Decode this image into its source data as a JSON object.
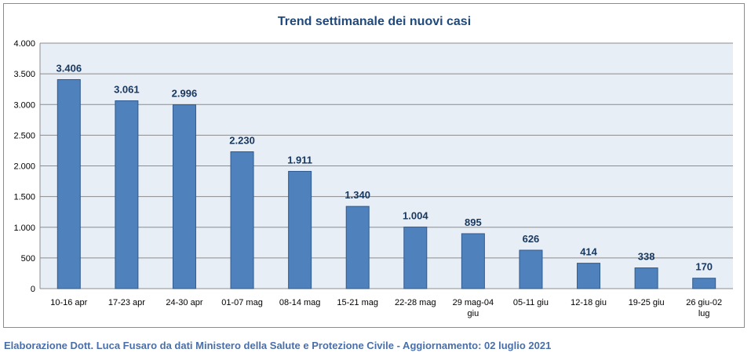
{
  "chart_data": {
    "type": "bar",
    "title": "Trend settimanale dei nuovi casi",
    "xlabel": "",
    "ylabel": "",
    "categories": [
      "10-16 apr",
      "17-23 apr",
      "24-30 apr",
      "01-07 mag",
      "08-14 mag",
      "15-21 mag",
      "22-28 mag",
      "29 mag-04 giu",
      "05-11 giu",
      "12-18 giu",
      "19-25 giu",
      "26 giu-02 lug"
    ],
    "values": [
      3406,
      3061,
      2996,
      2230,
      1911,
      1340,
      1004,
      895,
      626,
      414,
      338,
      170
    ],
    "value_labels": [
      "3.406",
      "3.061",
      "2.996",
      "2.230",
      "1.911",
      "1.340",
      "1.004",
      "895",
      "626",
      "414",
      "338",
      "170"
    ],
    "y_ticks": [
      0,
      500,
      1000,
      1500,
      2000,
      2500,
      3000,
      3500,
      4000
    ],
    "y_tick_labels": [
      "0",
      "500",
      "1.000",
      "1.500",
      "2.000",
      "2.500",
      "3.000",
      "3.500",
      "4.000"
    ],
    "ylim": [
      0,
      4000
    ],
    "grid": true,
    "legend": "none",
    "colors": {
      "bar_fill": "#4f81bd",
      "bar_stroke": "#2f5a8f",
      "plot_background": "#e8eef6",
      "gridline": "#8c8c8c",
      "title_color": "#1f497d",
      "label_color": "#17375e"
    }
  },
  "footer": {
    "credit": "Elaborazione Dott. Luca Fusaro da dati Ministero della Salute e Protezione Civile - Aggiornamento: 02 luglio 2021"
  }
}
